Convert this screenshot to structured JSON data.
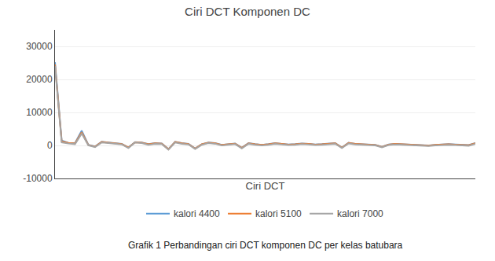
{
  "chart_data": {
    "type": "line",
    "title": "Ciri DCT Komponen DC",
    "x_label": "Ciri DCT",
    "caption": "Grafik 1 Perbandingan ciri DCT komponen DC per kelas batubara",
    "categories": [
      null,
      null,
      null,
      null,
      null,
      null,
      null,
      null,
      null,
      null,
      null,
      null,
      null,
      null,
      null,
      null,
      null,
      null,
      null,
      null,
      null,
      null,
      null,
      null,
      null,
      null,
      null,
      null,
      null,
      null,
      null,
      null,
      null,
      null,
      null,
      null,
      null,
      null,
      null,
      null,
      null,
      null,
      null,
      null,
      null,
      null,
      null,
      null,
      null,
      null,
      null,
      null,
      null,
      null,
      null,
      null,
      null,
      null,
      null,
      null,
      null,
      null,
      null,
      null
    ],
    "series": [
      {
        "name": "kalori 4400",
        "color": "#5B9BD5",
        "values": [
          25200,
          1500,
          800,
          700,
          4500,
          200,
          -300,
          1100,
          900,
          700,
          500,
          -600,
          1000,
          900,
          400,
          700,
          600,
          -1100,
          1100,
          700,
          500,
          -900,
          400,
          900,
          700,
          200,
          400,
          600,
          -700,
          700,
          400,
          200,
          400,
          700,
          500,
          300,
          400,
          600,
          500,
          300,
          400,
          500,
          700,
          -600,
          800,
          500,
          400,
          300,
          200,
          -400,
          300,
          500,
          400,
          300,
          200,
          100,
          0,
          200,
          300,
          400,
          300,
          200,
          100,
          700
        ]
      },
      {
        "name": "kalori 5100",
        "color": "#ED7D31",
        "values": [
          24500,
          1200,
          750,
          600,
          4000,
          150,
          -400,
          1050,
          850,
          650,
          450,
          -650,
          950,
          850,
          350,
          650,
          550,
          -1150,
          1050,
          650,
          450,
          -950,
          350,
          850,
          650,
          150,
          350,
          550,
          -750,
          650,
          350,
          150,
          350,
          650,
          450,
          250,
          350,
          550,
          450,
          250,
          350,
          450,
          650,
          -650,
          750,
          450,
          350,
          250,
          150,
          -450,
          250,
          450,
          350,
          250,
          150,
          50,
          -50,
          150,
          250,
          350,
          250,
          150,
          50,
          650
        ]
      },
      {
        "name": "kalori 7000",
        "color": "#A5A5A5",
        "values": [
          24000,
          900,
          600,
          400,
          3600,
          50,
          -500,
          900,
          700,
          500,
          300,
          -800,
          900,
          700,
          200,
          500,
          400,
          -1300,
          900,
          500,
          300,
          -1100,
          200,
          700,
          500,
          0,
          200,
          400,
          -900,
          500,
          200,
          0,
          200,
          500,
          300,
          100,
          200,
          400,
          300,
          100,
          200,
          300,
          500,
          -800,
          600,
          300,
          200,
          100,
          0,
          -600,
          100,
          300,
          200,
          100,
          0,
          -100,
          -200,
          0,
          100,
          200,
          100,
          0,
          -100,
          500
        ]
      }
    ],
    "ylim": [
      -10000,
      35000
    ],
    "yticks": [
      -10000,
      0,
      10000,
      20000,
      30000
    ],
    "grid": true,
    "legend": "bottom",
    "tick_labels": "y"
  }
}
